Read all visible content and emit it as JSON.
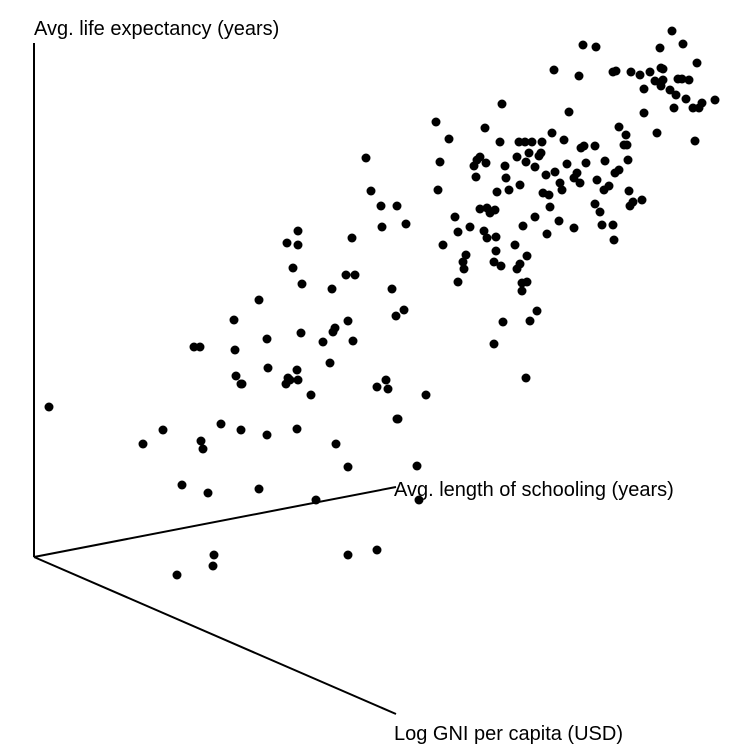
{
  "chart_data": {
    "type": "scatter",
    "title": "",
    "projection": "3d",
    "grid": false,
    "axes": {
      "z_label": "Avg. life expectancy (years)",
      "y_label": "Avg. length of schooling (years)",
      "x_label": "Log GNI per capita (USD)"
    },
    "point_color": "#000000",
    "points": [
      [
        49,
        407
      ],
      [
        143,
        444
      ],
      [
        163,
        430
      ],
      [
        201,
        441
      ],
      [
        203,
        449
      ],
      [
        221,
        424
      ],
      [
        241,
        430
      ],
      [
        267,
        435
      ],
      [
        297,
        429
      ],
      [
        336,
        444
      ],
      [
        348,
        467
      ],
      [
        417,
        466
      ],
      [
        419,
        500
      ],
      [
        398,
        419
      ],
      [
        426,
        395
      ],
      [
        377,
        387
      ],
      [
        386,
        380
      ],
      [
        388,
        389
      ],
      [
        182,
        485
      ],
      [
        208,
        493
      ],
      [
        259,
        489
      ],
      [
        316,
        500
      ],
      [
        177,
        575
      ],
      [
        213,
        566
      ],
      [
        214,
        555
      ],
      [
        348,
        555
      ],
      [
        377,
        550
      ],
      [
        194,
        347
      ],
      [
        200,
        347
      ],
      [
        234,
        320
      ],
      [
        235,
        350
      ],
      [
        236,
        376
      ],
      [
        241,
        384
      ],
      [
        242,
        384
      ],
      [
        259,
        300
      ],
      [
        267,
        339
      ],
      [
        268,
        368
      ],
      [
        286,
        384
      ],
      [
        288,
        378
      ],
      [
        290,
        380
      ],
      [
        297,
        370
      ],
      [
        298,
        380
      ],
      [
        301,
        333
      ],
      [
        302,
        284
      ],
      [
        311,
        395
      ],
      [
        323,
        342
      ],
      [
        330,
        363
      ],
      [
        333,
        332
      ],
      [
        335,
        328
      ],
      [
        332,
        289
      ],
      [
        346,
        275
      ],
      [
        348,
        321
      ],
      [
        353,
        341
      ],
      [
        355,
        275
      ],
      [
        352,
        238
      ],
      [
        392,
        289
      ],
      [
        396,
        316
      ],
      [
        404,
        310
      ],
      [
        397,
        419
      ],
      [
        287,
        243
      ],
      [
        293,
        268
      ],
      [
        298,
        231
      ],
      [
        298,
        245
      ],
      [
        366,
        158
      ],
      [
        371,
        191
      ],
      [
        381,
        206
      ],
      [
        382,
        227
      ],
      [
        397,
        206
      ],
      [
        406,
        224
      ],
      [
        436,
        122
      ],
      [
        440,
        162
      ],
      [
        438,
        190
      ],
      [
        443,
        245
      ],
      [
        449,
        139
      ],
      [
        455,
        217
      ],
      [
        458,
        232
      ],
      [
        458,
        282
      ],
      [
        463,
        262
      ],
      [
        464,
        269
      ],
      [
        466,
        255
      ],
      [
        470,
        227
      ],
      [
        474,
        166
      ],
      [
        476,
        177
      ],
      [
        477,
        160
      ],
      [
        480,
        157
      ],
      [
        480,
        209
      ],
      [
        484,
        231
      ],
      [
        485,
        128
      ],
      [
        486,
        163
      ],
      [
        487,
        238
      ],
      [
        487,
        208
      ],
      [
        490,
        213
      ],
      [
        494,
        262
      ],
      [
        495,
        210
      ],
      [
        496,
        237
      ],
      [
        496,
        251
      ],
      [
        497,
        192
      ],
      [
        500,
        142
      ],
      [
        501,
        266
      ],
      [
        502,
        104
      ],
      [
        503,
        322
      ],
      [
        505,
        166
      ],
      [
        506,
        178
      ],
      [
        509,
        190
      ],
      [
        515,
        245
      ],
      [
        517,
        157
      ],
      [
        517,
        269
      ],
      [
        519,
        142
      ],
      [
        520,
        185
      ],
      [
        522,
        283
      ],
      [
        522,
        291
      ],
      [
        523,
        226
      ],
      [
        525,
        142
      ],
      [
        526,
        162
      ],
      [
        527,
        256
      ],
      [
        529,
        153
      ],
      [
        532,
        142
      ],
      [
        535,
        167
      ],
      [
        535,
        217
      ],
      [
        537,
        311
      ],
      [
        539,
        156
      ],
      [
        541,
        153
      ],
      [
        542,
        142
      ],
      [
        543,
        193
      ],
      [
        546,
        175
      ],
      [
        547,
        234
      ],
      [
        549,
        195
      ],
      [
        550,
        207
      ],
      [
        552,
        133
      ],
      [
        555,
        172
      ],
      [
        559,
        221
      ],
      [
        560,
        183
      ],
      [
        562,
        190
      ],
      [
        564,
        140
      ],
      [
        567,
        164
      ],
      [
        569,
        112
      ],
      [
        574,
        228
      ],
      [
        574,
        178
      ],
      [
        577,
        173
      ],
      [
        580,
        183
      ],
      [
        581,
        148
      ],
      [
        584,
        146
      ],
      [
        586,
        163
      ],
      [
        595,
        146
      ],
      [
        595,
        204
      ],
      [
        597,
        180
      ],
      [
        600,
        212
      ],
      [
        602,
        225
      ],
      [
        604,
        190
      ],
      [
        605,
        161
      ],
      [
        609,
        186
      ],
      [
        613,
        225
      ],
      [
        614,
        240
      ],
      [
        615,
        173
      ],
      [
        619,
        127
      ],
      [
        619,
        170
      ],
      [
        624,
        145
      ],
      [
        626,
        135
      ],
      [
        627,
        145
      ],
      [
        628,
        160
      ],
      [
        629,
        191
      ],
      [
        630,
        206
      ],
      [
        633,
        202
      ],
      [
        642,
        200
      ],
      [
        644,
        113
      ],
      [
        650,
        72
      ],
      [
        655,
        81
      ],
      [
        657,
        133
      ],
      [
        661,
        86
      ],
      [
        661,
        68
      ],
      [
        663,
        69
      ],
      [
        663,
        80
      ],
      [
        670,
        90
      ],
      [
        672,
        31
      ],
      [
        674,
        108
      ],
      [
        676,
        95
      ],
      [
        678,
        79
      ],
      [
        682,
        79
      ],
      [
        686,
        99
      ],
      [
        689,
        80
      ],
      [
        693,
        108
      ],
      [
        695,
        141
      ],
      [
        697,
        63
      ],
      [
        699,
        108
      ],
      [
        702,
        103
      ],
      [
        715,
        100
      ],
      [
        660,
        48
      ],
      [
        683,
        44
      ],
      [
        644,
        89
      ],
      [
        640,
        75
      ],
      [
        631,
        72
      ],
      [
        613,
        72
      ],
      [
        616,
        71
      ],
      [
        583,
        45
      ],
      [
        596,
        47
      ],
      [
        554,
        70
      ],
      [
        579,
        76
      ],
      [
        526,
        378
      ],
      [
        494,
        344
      ],
      [
        527,
        282
      ],
      [
        530,
        321
      ],
      [
        520,
        264
      ]
    ]
  }
}
